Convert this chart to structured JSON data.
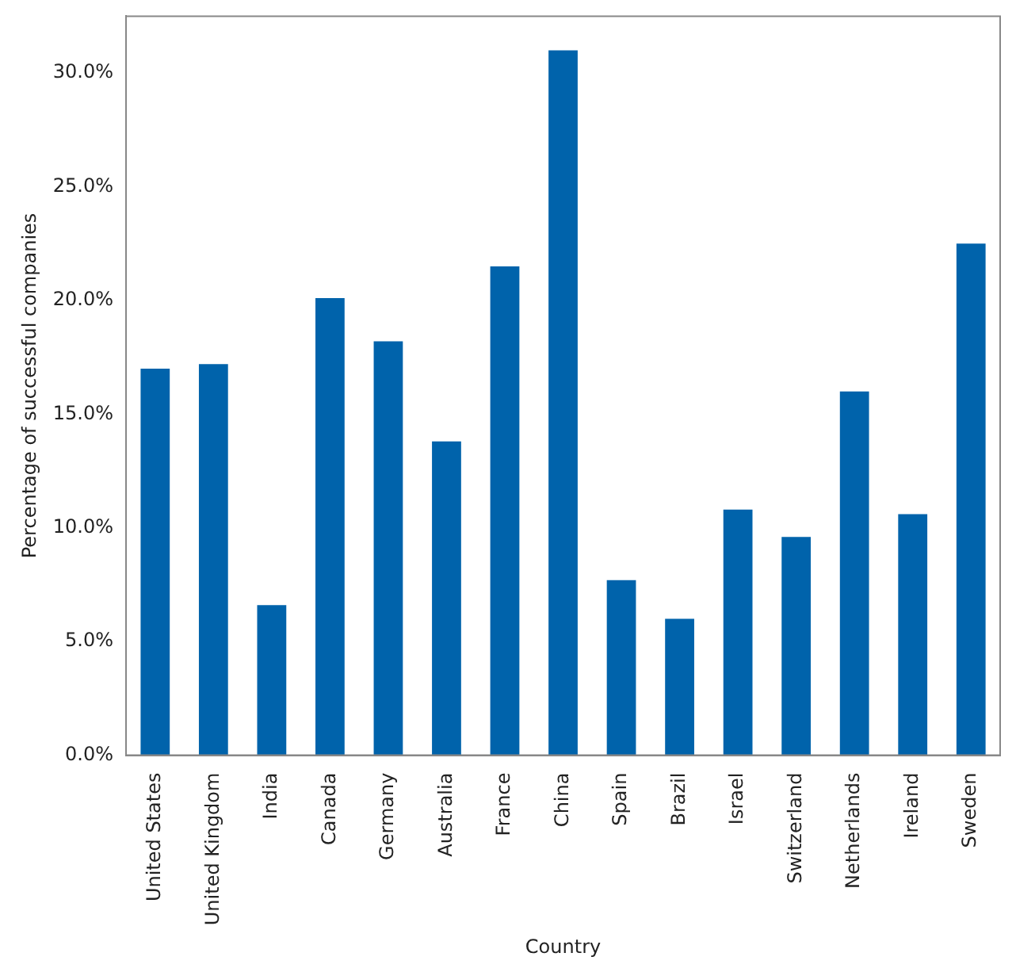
{
  "chart_data": {
    "type": "bar",
    "xlabel": "Country",
    "ylabel": "Percentage of successful companies",
    "categories": [
      "United States",
      "United Kingdom",
      "India",
      "Canada",
      "Germany",
      "Australia",
      "France",
      "China",
      "Spain",
      "Brazil",
      "Israel",
      "Switzerland",
      "Netherlands",
      "Ireland",
      "Sweden"
    ],
    "values": [
      17.0,
      17.2,
      6.6,
      20.1,
      18.2,
      13.8,
      21.5,
      31.0,
      7.7,
      6.0,
      10.8,
      9.6,
      16.0,
      10.6,
      22.5
    ],
    "color": "#0063ab",
    "ylim": [
      0,
      32.5
    ],
    "yticks": [
      {
        "value": 0,
        "label": "0.0%"
      },
      {
        "value": 5,
        "label": "5.0%"
      },
      {
        "value": 10,
        "label": "10.0%"
      },
      {
        "value": 15,
        "label": "15.0%"
      },
      {
        "value": 20,
        "label": "20.0%"
      },
      {
        "value": 25,
        "label": "25.0%"
      },
      {
        "value": 30,
        "label": "30.0%"
      }
    ],
    "grid": false,
    "legend": false
  }
}
